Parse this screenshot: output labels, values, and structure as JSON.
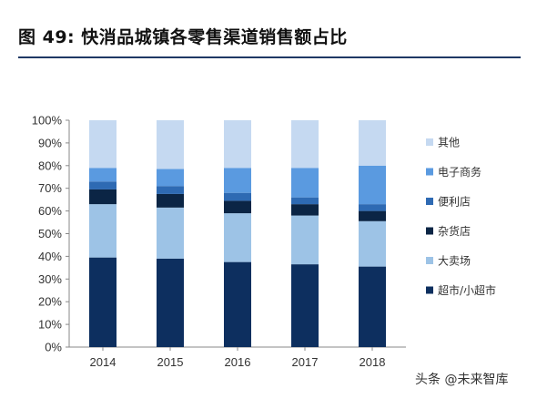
{
  "header": {
    "title": "图 49:   快消品城镇各零售渠道销售额占比"
  },
  "watermark": "头条 @未来智库",
  "chart_data": {
    "type": "bar",
    "stacked": true,
    "categories": [
      "2014",
      "2015",
      "2016",
      "2017",
      "2018"
    ],
    "ylim": [
      0,
      100
    ],
    "yticks": [
      "0%",
      "10%",
      "20%",
      "30%",
      "40%",
      "50%",
      "60%",
      "70%",
      "80%",
      "90%",
      "100%"
    ],
    "legend_position": "right",
    "series": [
      {
        "name": "超市/小超市",
        "color": "#0d2f5f",
        "values": [
          39.5,
          39,
          37.5,
          36.5,
          35.5
        ]
      },
      {
        "name": "大卖场",
        "color": "#9dc3e6",
        "values": [
          23.5,
          22.5,
          21.5,
          21.5,
          20
        ]
      },
      {
        "name": "杂货店",
        "color": "#0b2545",
        "values": [
          6.5,
          6,
          5.5,
          5,
          4.5
        ]
      },
      {
        "name": "便利店",
        "color": "#2e6ab3",
        "values": [
          3.5,
          3.5,
          3.5,
          3,
          3
        ]
      },
      {
        "name": "电子商务",
        "color": "#5a9ae0",
        "values": [
          6,
          7.5,
          11,
          13,
          17
        ]
      },
      {
        "name": "其他",
        "color": "#c5d9f1",
        "values": [
          21,
          21.5,
          21,
          21,
          20
        ]
      }
    ]
  }
}
